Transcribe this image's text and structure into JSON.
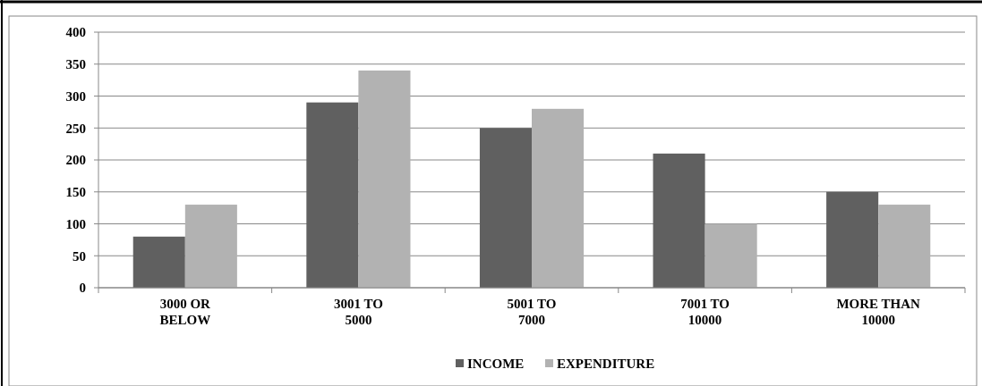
{
  "chart_data": {
    "type": "bar",
    "categories": [
      "3000 OR BELOW",
      "3001 TO 5000",
      "5001 TO 7000",
      "7001 TO 10000",
      "MORE THAN 10000"
    ],
    "series": [
      {
        "name": "INCOME",
        "color": "#606060",
        "values": [
          80,
          290,
          250,
          210,
          150
        ]
      },
      {
        "name": "EXPENDITURE",
        "color": "#b2b2b2",
        "values": [
          130,
          340,
          280,
          100,
          130
        ]
      }
    ],
    "ylim": [
      0,
      400
    ],
    "yticks": [
      0,
      50,
      100,
      150,
      200,
      250,
      300,
      350,
      400
    ],
    "grid": "y",
    "legend": "bottom"
  }
}
